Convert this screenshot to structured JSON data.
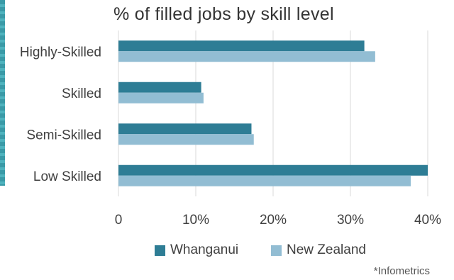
{
  "chart_data": {
    "type": "bar",
    "orientation": "horizontal",
    "title": "% of filled jobs by skill level",
    "categories": [
      "Highly-Skilled",
      "Skilled",
      "Semi-Skilled",
      "Low Skilled"
    ],
    "series": [
      {
        "name": "Whanganui",
        "color": "#2e7d95",
        "values": [
          31.8,
          10.7,
          17.2,
          40.0
        ]
      },
      {
        "name": "New Zealand",
        "color": "#92bdd3",
        "values": [
          33.2,
          11.0,
          17.5,
          37.8
        ]
      }
    ],
    "xlim": [
      0,
      40
    ],
    "xticks": [
      "0",
      "10%",
      "20%",
      "30%",
      "40%"
    ],
    "xunit": "%",
    "grid": "vertical",
    "legend": "bottom",
    "source_note": "*Infometrics"
  }
}
